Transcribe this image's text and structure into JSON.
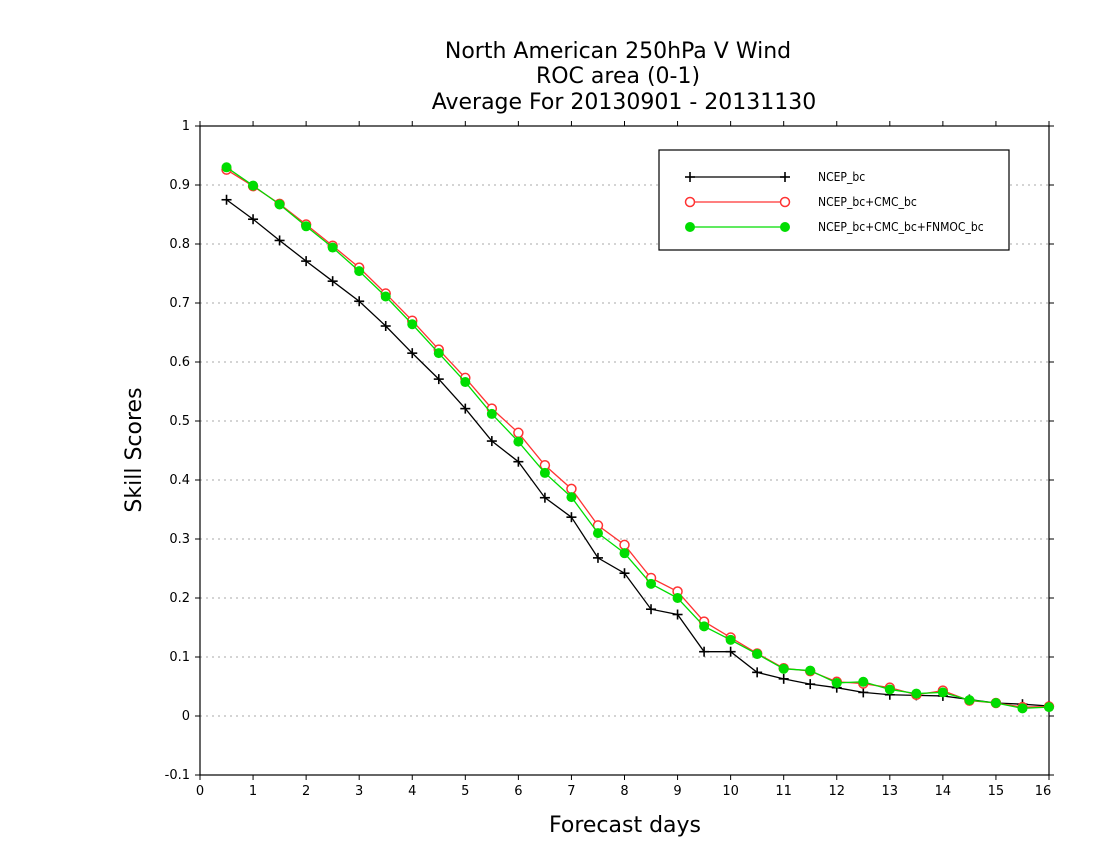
{
  "chart_data": {
    "type": "line",
    "title": [
      "North American 250hPa V Wind",
      "ROC area (0-1)",
      "Average For 20130901 - 20131130"
    ],
    "xlabel": "Forecast days",
    "ylabel": "Skill Scores",
    "xlim": [
      0,
      16
    ],
    "ylim": [
      -0.1,
      1
    ],
    "xticks": [
      0,
      1,
      2,
      3,
      4,
      5,
      6,
      7,
      8,
      9,
      10,
      11,
      12,
      13,
      14,
      15,
      16
    ],
    "yticks": [
      -0.1,
      0,
      0.1,
      0.2,
      0.3,
      0.4,
      0.5,
      0.6,
      0.7,
      0.8,
      0.9,
      1
    ],
    "ytick_labels": [
      "-0.1",
      "0",
      "0.1",
      "0.2",
      "0.3",
      "0.4",
      "0.5",
      "0.6",
      "0.7",
      "0.8",
      "0.9",
      "1"
    ],
    "grid": "horizontal-dotted",
    "legend_position": "top-right",
    "x": [
      0.5,
      1,
      1.5,
      2,
      2.5,
      3,
      3.5,
      4,
      4.5,
      5,
      5.5,
      6,
      6.5,
      7,
      7.5,
      8,
      8.5,
      9,
      9.5,
      10,
      10.5,
      11,
      11.5,
      12,
      12.5,
      13,
      13.5,
      14,
      14.5,
      15,
      15.5,
      16
    ],
    "series": [
      {
        "name": "NCEP_bc",
        "color": "#000000",
        "marker": "plus",
        "values": [
          0.875,
          0.842,
          0.806,
          0.771,
          0.737,
          0.703,
          0.661,
          0.615,
          0.571,
          0.521,
          0.466,
          0.431,
          0.37,
          0.337,
          0.268,
          0.242,
          0.181,
          0.172,
          0.109,
          0.109,
          0.074,
          0.063,
          0.054,
          0.048,
          0.04,
          0.036,
          0.035,
          0.034,
          0.028,
          0.022,
          0.02,
          0.017
        ]
      },
      {
        "name": "NCEP_bc+CMC_bc",
        "color": "#ff3333",
        "marker": "open-circle",
        "values": [
          0.926,
          0.898,
          0.868,
          0.833,
          0.797,
          0.76,
          0.716,
          0.67,
          0.621,
          0.573,
          0.521,
          0.48,
          0.425,
          0.385,
          0.323,
          0.29,
          0.234,
          0.211,
          0.16,
          0.133,
          0.106,
          0.081,
          0.076,
          0.058,
          0.055,
          0.048,
          0.036,
          0.043,
          0.026,
          0.022,
          0.015,
          0.016
        ]
      },
      {
        "name": "NCEP_bc+CMC_bc+FNMOC_bc",
        "color": "#00dd00",
        "marker": "filled-circle",
        "values": [
          0.93,
          0.899,
          0.867,
          0.83,
          0.794,
          0.754,
          0.711,
          0.664,
          0.615,
          0.566,
          0.512,
          0.465,
          0.412,
          0.371,
          0.31,
          0.276,
          0.224,
          0.2,
          0.152,
          0.129,
          0.105,
          0.08,
          0.077,
          0.056,
          0.058,
          0.045,
          0.038,
          0.04,
          0.027,
          0.022,
          0.013,
          0.015
        ]
      }
    ]
  }
}
